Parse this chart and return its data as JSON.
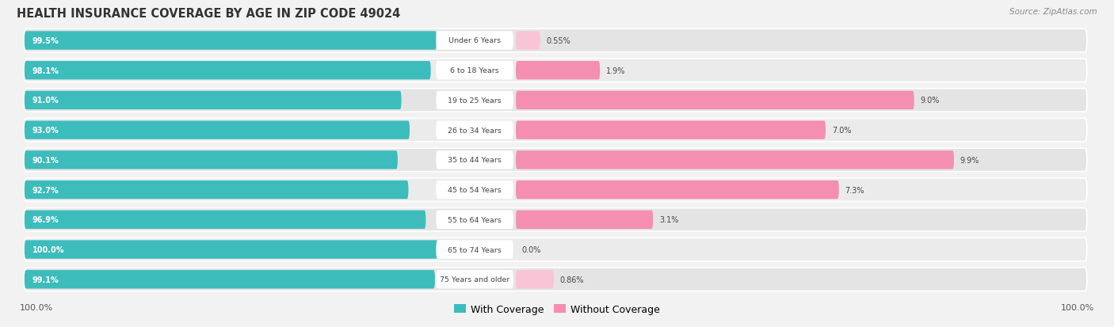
{
  "title": "HEALTH INSURANCE COVERAGE BY AGE IN ZIP CODE 49024",
  "source": "Source: ZipAtlas.com",
  "categories": [
    "Under 6 Years",
    "6 to 18 Years",
    "19 to 25 Years",
    "26 to 34 Years",
    "35 to 44 Years",
    "45 to 54 Years",
    "55 to 64 Years",
    "65 to 74 Years",
    "75 Years and older"
  ],
  "with_coverage": [
    99.5,
    98.1,
    91.0,
    93.0,
    90.1,
    92.7,
    96.9,
    100.0,
    99.1
  ],
  "without_coverage": [
    0.55,
    1.9,
    9.0,
    7.0,
    9.9,
    7.3,
    3.1,
    0.0,
    0.86
  ],
  "with_labels": [
    "99.5%",
    "98.1%",
    "91.0%",
    "93.0%",
    "90.1%",
    "92.7%",
    "96.9%",
    "100.0%",
    "99.1%"
  ],
  "without_labels": [
    "0.55%",
    "1.9%",
    "9.0%",
    "7.0%",
    "9.9%",
    "7.3%",
    "3.1%",
    "0.0%",
    "0.86%"
  ],
  "color_with": "#3DBCBC",
  "color_without": "#F48FB1",
  "color_without_faint": "#F9C4D6",
  "row_bg": "#E8E8E8",
  "row_bg2": "#F0F0F0",
  "fig_bg": "#F2F2F2",
  "bar_track_color": "#DEDEDE",
  "title_fontsize": 10.5,
  "label_fontsize": 8,
  "legend_fontsize": 9
}
